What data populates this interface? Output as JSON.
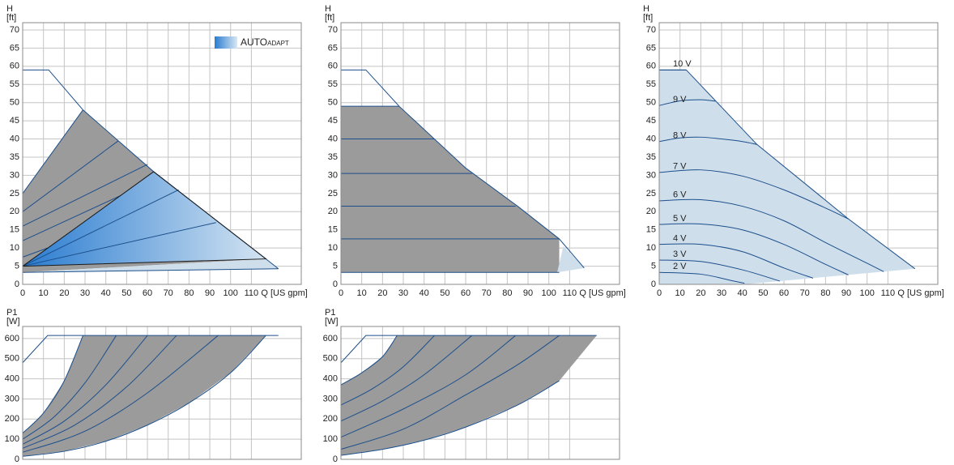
{
  "chart_data": [
    {
      "type": "line",
      "y_label": "H",
      "y_unit": "[ft]",
      "x_label": "Q [US gpm]",
      "xlim": [
        0,
        134
      ],
      "ylim": [
        0,
        72
      ],
      "xticks": [
        0,
        10,
        20,
        30,
        40,
        50,
        60,
        70,
        80,
        90,
        100,
        110
      ],
      "yticks": [
        0,
        5,
        10,
        15,
        20,
        25,
        30,
        35,
        40,
        45,
        50,
        55,
        60,
        65,
        70
      ],
      "xtick_labels": true,
      "grid": true,
      "badge": "AUTO",
      "badge_small": "ADAPT",
      "badge_colors": [
        "#2a7cd0",
        "#d8e7f4"
      ],
      "series": [
        {
          "fill": "#9b9b9b",
          "x": [
            0,
            0,
            29,
            63,
            117
          ],
          "values": [
            3.3,
            25,
            48,
            31,
            7
          ]
        },
        {
          "fill": "#cfdeeb",
          "x": [
            0,
            117,
            123
          ],
          "values": [
            3.3,
            7,
            4.3
          ]
        },
        {
          "fill": [
            "#2a7cd0",
            "#d4e4f2"
          ],
          "x": [
            0,
            63,
            117
          ],
          "values": [
            5,
            31,
            7
          ]
        },
        {
          "color": "#1c4f8c",
          "x": [
            0,
            12.5,
            29,
            63,
            117,
            123
          ],
          "values": [
            59,
            59,
            48,
            31,
            7,
            4.3
          ]
        },
        {
          "color": "#1c4f8c",
          "x": [
            0,
            29
          ],
          "values": [
            25,
            48
          ]
        },
        {
          "color": "#1c4f8c",
          "x": [
            0,
            46
          ],
          "values": [
            20,
            39.5
          ]
        },
        {
          "color": "#1c4f8c",
          "x": [
            0,
            60
          ],
          "values": [
            16,
            33
          ]
        },
        {
          "color": "#1c4f8c",
          "x": [
            0,
            47
          ],
          "values": [
            12,
            24.4
          ]
        },
        {
          "color": "#1c4f8c",
          "x": [
            0,
            12
          ],
          "values": [
            7.5,
            10
          ]
        },
        {
          "color": "#1c4f8c",
          "x": [
            0,
            75
          ],
          "values": [
            5,
            26
          ]
        },
        {
          "color": "#1c4f8c",
          "x": [
            0,
            93
          ],
          "values": [
            5,
            17
          ]
        },
        {
          "color": "#1c4f8c",
          "x": [
            0,
            123
          ],
          "values": [
            3.3,
            4.3
          ]
        },
        {
          "color": "#1a1a1a",
          "x": [
            0,
            63,
            117,
            0
          ],
          "values": [
            5,
            31,
            7,
            5
          ]
        }
      ]
    },
    {
      "type": "line",
      "y_label": "H",
      "y_unit": "[ft]",
      "x_label": "Q [US gpm]",
      "xlim": [
        0,
        134
      ],
      "ylim": [
        0,
        72
      ],
      "xticks": [
        0,
        10,
        20,
        30,
        40,
        50,
        60,
        70,
        80,
        90,
        100,
        110
      ],
      "yticks": [
        0,
        5,
        10,
        15,
        20,
        25,
        30,
        35,
        40,
        45,
        50,
        55,
        60,
        65,
        70
      ],
      "xtick_labels": true,
      "grid": true,
      "series": [
        {
          "fill": "#9b9b9b",
          "x": [
            0,
            0,
            28,
            60,
            85,
            105,
            105
          ],
          "values": [
            3.3,
            49,
            49,
            32,
            21.5,
            12.5,
            3.3
          ]
        },
        {
          "fill": "#cfdeeb",
          "x": [
            104,
            117,
            107
          ],
          "values": [
            3.3,
            4.5,
            10.5
          ]
        },
        {
          "color": "#1c4f8c",
          "x": [
            0,
            12,
            28,
            60,
            85,
            105,
            117
          ],
          "values": [
            59,
            59,
            49,
            32,
            21.5,
            12.5,
            4.5
          ]
        },
        {
          "color": "#1c4f8c",
          "x": [
            0,
            28
          ],
          "values": [
            49,
            49
          ]
        },
        {
          "color": "#1c4f8c",
          "x": [
            0,
            45
          ],
          "values": [
            40,
            40
          ]
        },
        {
          "color": "#1c4f8c",
          "x": [
            0,
            63
          ],
          "values": [
            30.5,
            30.5
          ]
        },
        {
          "color": "#1c4f8c",
          "x": [
            0,
            84
          ],
          "values": [
            21.5,
            21.5
          ]
        },
        {
          "color": "#1c4f8c",
          "x": [
            0,
            105
          ],
          "values": [
            12.5,
            12.5
          ]
        },
        {
          "color": "#1c4f8c",
          "x": [
            0,
            105
          ],
          "values": [
            3.3,
            3.3
          ]
        }
      ]
    },
    {
      "type": "line",
      "y_label": "H",
      "y_unit": "[ft]",
      "x_label": "Q [US gpm]",
      "xlim": [
        0,
        134
      ],
      "ylim": [
        0,
        72
      ],
      "xticks": [
        0,
        10,
        20,
        30,
        40,
        50,
        60,
        70,
        80,
        90,
        100,
        110
      ],
      "yticks": [
        0,
        5,
        10,
        15,
        20,
        25,
        30,
        35,
        40,
        45,
        50,
        55,
        60,
        65,
        70
      ],
      "xtick_labels": true,
      "grid": true,
      "series_labels": "inline",
      "series": [
        {
          "fill": "#cfdeeb",
          "x": [
            0,
            13,
            47,
            91,
            123,
            41,
            0
          ],
          "values": [
            59,
            59,
            38.5,
            18,
            4.3,
            0,
            0
          ]
        },
        {
          "color": "#1c4f8c",
          "x": [
            0,
            13,
            47,
            91,
            123
          ],
          "values": [
            59,
            59,
            38.5,
            18,
            4.3
          ]
        },
        {
          "name": "10 V",
          "color": "#1c4f8c",
          "smooth": true,
          "x": [
            0,
            13
          ],
          "values": [
            59,
            59
          ]
        },
        {
          "name": "9 V",
          "color": "#1c4f8c",
          "smooth": true,
          "x": [
            0,
            10,
            20,
            27
          ],
          "values": [
            49.2,
            50.5,
            50.8,
            50.4
          ]
        },
        {
          "name": "8 V",
          "color": "#1c4f8c",
          "smooth": true,
          "x": [
            0,
            10,
            20,
            30,
            40,
            47
          ],
          "values": [
            39.3,
            40.3,
            40.5,
            40,
            39.3,
            38.5
          ]
        },
        {
          "name": "7 V",
          "color": "#1c4f8c",
          "smooth": true,
          "x": [
            0,
            20,
            40,
            60,
            80,
            91
          ],
          "values": [
            30.8,
            31.5,
            29.8,
            26,
            21,
            18
          ]
        },
        {
          "name": "6 V",
          "color": "#1c4f8c",
          "smooth": true,
          "x": [
            0,
            20,
            40,
            60,
            80,
            100,
            108
          ],
          "values": [
            23,
            23.3,
            21.5,
            17.5,
            11.5,
            5.8,
            3.5
          ]
        },
        {
          "name": "5 V",
          "color": "#1c4f8c",
          "smooth": true,
          "x": [
            0,
            20,
            40,
            60,
            80,
            91
          ],
          "values": [
            16.5,
            16.6,
            15,
            11,
            5.5,
            2.6
          ]
        },
        {
          "name": "4 V",
          "color": "#1c4f8c",
          "smooth": true,
          "x": [
            0,
            20,
            40,
            60,
            74
          ],
          "values": [
            11,
            11,
            9,
            4.5,
            1.7
          ]
        },
        {
          "name": "3 V",
          "color": "#1c4f8c",
          "smooth": true,
          "x": [
            0,
            20,
            40,
            58
          ],
          "values": [
            6.7,
            6.3,
            4,
            0.9
          ]
        },
        {
          "name": "2 V",
          "color": "#1c4f8c",
          "smooth": true,
          "x": [
            0,
            20,
            35,
            41
          ],
          "values": [
            3.3,
            2.8,
            1,
            0.3
          ]
        }
      ]
    },
    {
      "type": "line",
      "y_label": "P1",
      "y_unit": "[W]",
      "xlim": [
        0,
        134
      ],
      "ylim": [
        0,
        660
      ],
      "xticks": [
        0,
        10,
        20,
        30,
        40,
        50,
        60,
        70,
        80,
        90,
        100,
        110
      ],
      "yticks": [
        0,
        100,
        200,
        300,
        400,
        500,
        600
      ],
      "xtick_labels": false,
      "grid": true,
      "series": [
        {
          "fill": "#9b9b9b",
          "x": [
            0,
            10,
            20,
            29,
            117,
            100,
            80,
            60,
            40,
            20,
            0
          ],
          "values": [
            130,
            230,
            390,
            615,
            615,
            430,
            280,
            170,
            90,
            40,
            15
          ]
        },
        {
          "color": "#1c4f8c",
          "x": [
            0,
            12,
            123
          ],
          "values": [
            480,
            615,
            615
          ]
        },
        {
          "color": "#1c4f8c",
          "smooth": true,
          "x": [
            0,
            10,
            20,
            29
          ],
          "values": [
            130,
            230,
            390,
            615
          ]
        },
        {
          "color": "#1c4f8c",
          "smooth": true,
          "x": [
            0,
            15,
            30,
            45
          ],
          "values": [
            100,
            210,
            380,
            615
          ]
        },
        {
          "color": "#1c4f8c",
          "smooth": true,
          "x": [
            0,
            20,
            40,
            60
          ],
          "values": [
            75,
            190,
            370,
            615
          ]
        },
        {
          "color": "#1c4f8c",
          "smooth": true,
          "x": [
            0,
            25,
            50,
            74
          ],
          "values": [
            55,
            170,
            360,
            615
          ]
        },
        {
          "color": "#1c4f8c",
          "smooth": true,
          "x": [
            0,
            30,
            60,
            94
          ],
          "values": [
            35,
            140,
            330,
            615
          ]
        },
        {
          "color": "#1c4f8c",
          "smooth": true,
          "x": [
            0,
            20,
            40,
            60,
            80,
            100,
            117
          ],
          "values": [
            15,
            40,
            90,
            170,
            280,
            430,
            615
          ]
        }
      ]
    },
    {
      "type": "line",
      "y_label": "P1",
      "y_unit": "[W]",
      "xlim": [
        0,
        134
      ],
      "ylim": [
        0,
        660
      ],
      "xticks": [
        0,
        10,
        20,
        30,
        40,
        50,
        60,
        70,
        80,
        90,
        100,
        110
      ],
      "yticks": [
        0,
        100,
        200,
        300,
        400,
        500,
        600
      ],
      "xtick_labels": false,
      "grid": true,
      "series": [
        {
          "fill": "#9b9b9b",
          "x": [
            0,
            0,
            10,
            20,
            27,
            123,
            105,
            85,
            60,
            40,
            20,
            0
          ],
          "values": [
            20,
            370,
            430,
            510,
            615,
            615,
            390,
            270,
            160,
            95,
            50,
            20
          ]
        },
        {
          "color": "#1c4f8c",
          "x": [
            0,
            12,
            123
          ],
          "values": [
            480,
            615,
            615
          ]
        },
        {
          "color": "#1c4f8c",
          "smooth": true,
          "x": [
            0,
            10,
            20,
            27
          ],
          "values": [
            370,
            430,
            510,
            615
          ]
        },
        {
          "color": "#1c4f8c",
          "smooth": true,
          "x": [
            0,
            15,
            30,
            45
          ],
          "values": [
            270,
            350,
            460,
            615
          ]
        },
        {
          "color": "#1c4f8c",
          "smooth": true,
          "x": [
            0,
            20,
            40,
            63
          ],
          "values": [
            190,
            290,
            420,
            615
          ]
        },
        {
          "color": "#1c4f8c",
          "smooth": true,
          "x": [
            0,
            30,
            60,
            84
          ],
          "values": [
            110,
            250,
            420,
            615
          ]
        },
        {
          "color": "#1c4f8c",
          "smooth": true,
          "x": [
            0,
            30,
            60,
            85,
            105
          ],
          "values": [
            50,
            150,
            320,
            470,
            615
          ]
        },
        {
          "color": "#1c4f8c",
          "smooth": true,
          "x": [
            0,
            20,
            40,
            60,
            85,
            105
          ],
          "values": [
            20,
            50,
            95,
            160,
            270,
            390
          ]
        }
      ]
    }
  ]
}
